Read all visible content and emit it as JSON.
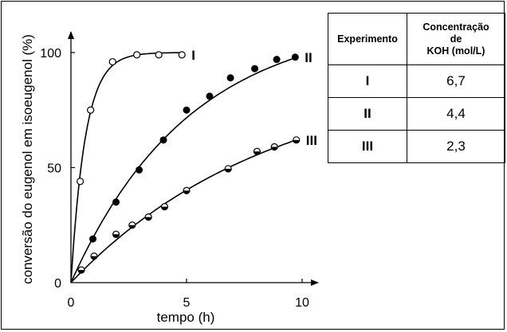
{
  "chart_data": {
    "type": "scatter",
    "xlabel": "tempo (h)",
    "ylabel": "conversão do eugenol em isoeugenol (%)",
    "xlim": [
      0,
      10.5
    ],
    "ylim": [
      0,
      105
    ],
    "xticks": [
      "0",
      "5",
      "10"
    ],
    "yticks": [
      "0",
      "50",
      "100"
    ],
    "grid": false,
    "series": [
      {
        "name": "I",
        "marker": "open-circle",
        "x": [
          0.4,
          0.85,
          1.8,
          2.85,
          3.8,
          4.8
        ],
        "y": [
          44,
          75,
          96,
          99,
          99,
          99
        ]
      },
      {
        "name": "II",
        "marker": "filled-circle",
        "x": [
          0.95,
          1.95,
          2.95,
          4.0,
          5.0,
          6.0,
          6.9,
          7.95,
          8.9,
          9.7
        ],
        "y": [
          19,
          35,
          49,
          62,
          75,
          81,
          89,
          93,
          97,
          98
        ]
      },
      {
        "name": "III",
        "marker": "half-filled-circle",
        "x": [
          0.45,
          1.0,
          1.95,
          2.65,
          3.35,
          4.05,
          5.0,
          6.8,
          8.05,
          8.8,
          9.75
        ],
        "y": [
          5.5,
          11.5,
          21,
          25,
          28.5,
          33,
          40,
          49.5,
          57,
          59,
          62
        ]
      }
    ]
  },
  "table": {
    "headers": [
      "Experimento",
      [
        "Concentração",
        "de",
        "KOH (mol/L)"
      ]
    ],
    "rows": [
      {
        "experiment": "I",
        "concentration": "6,7"
      },
      {
        "experiment": "II",
        "concentration": "4,4"
      },
      {
        "experiment": "III",
        "concentration": "2,3"
      }
    ]
  }
}
